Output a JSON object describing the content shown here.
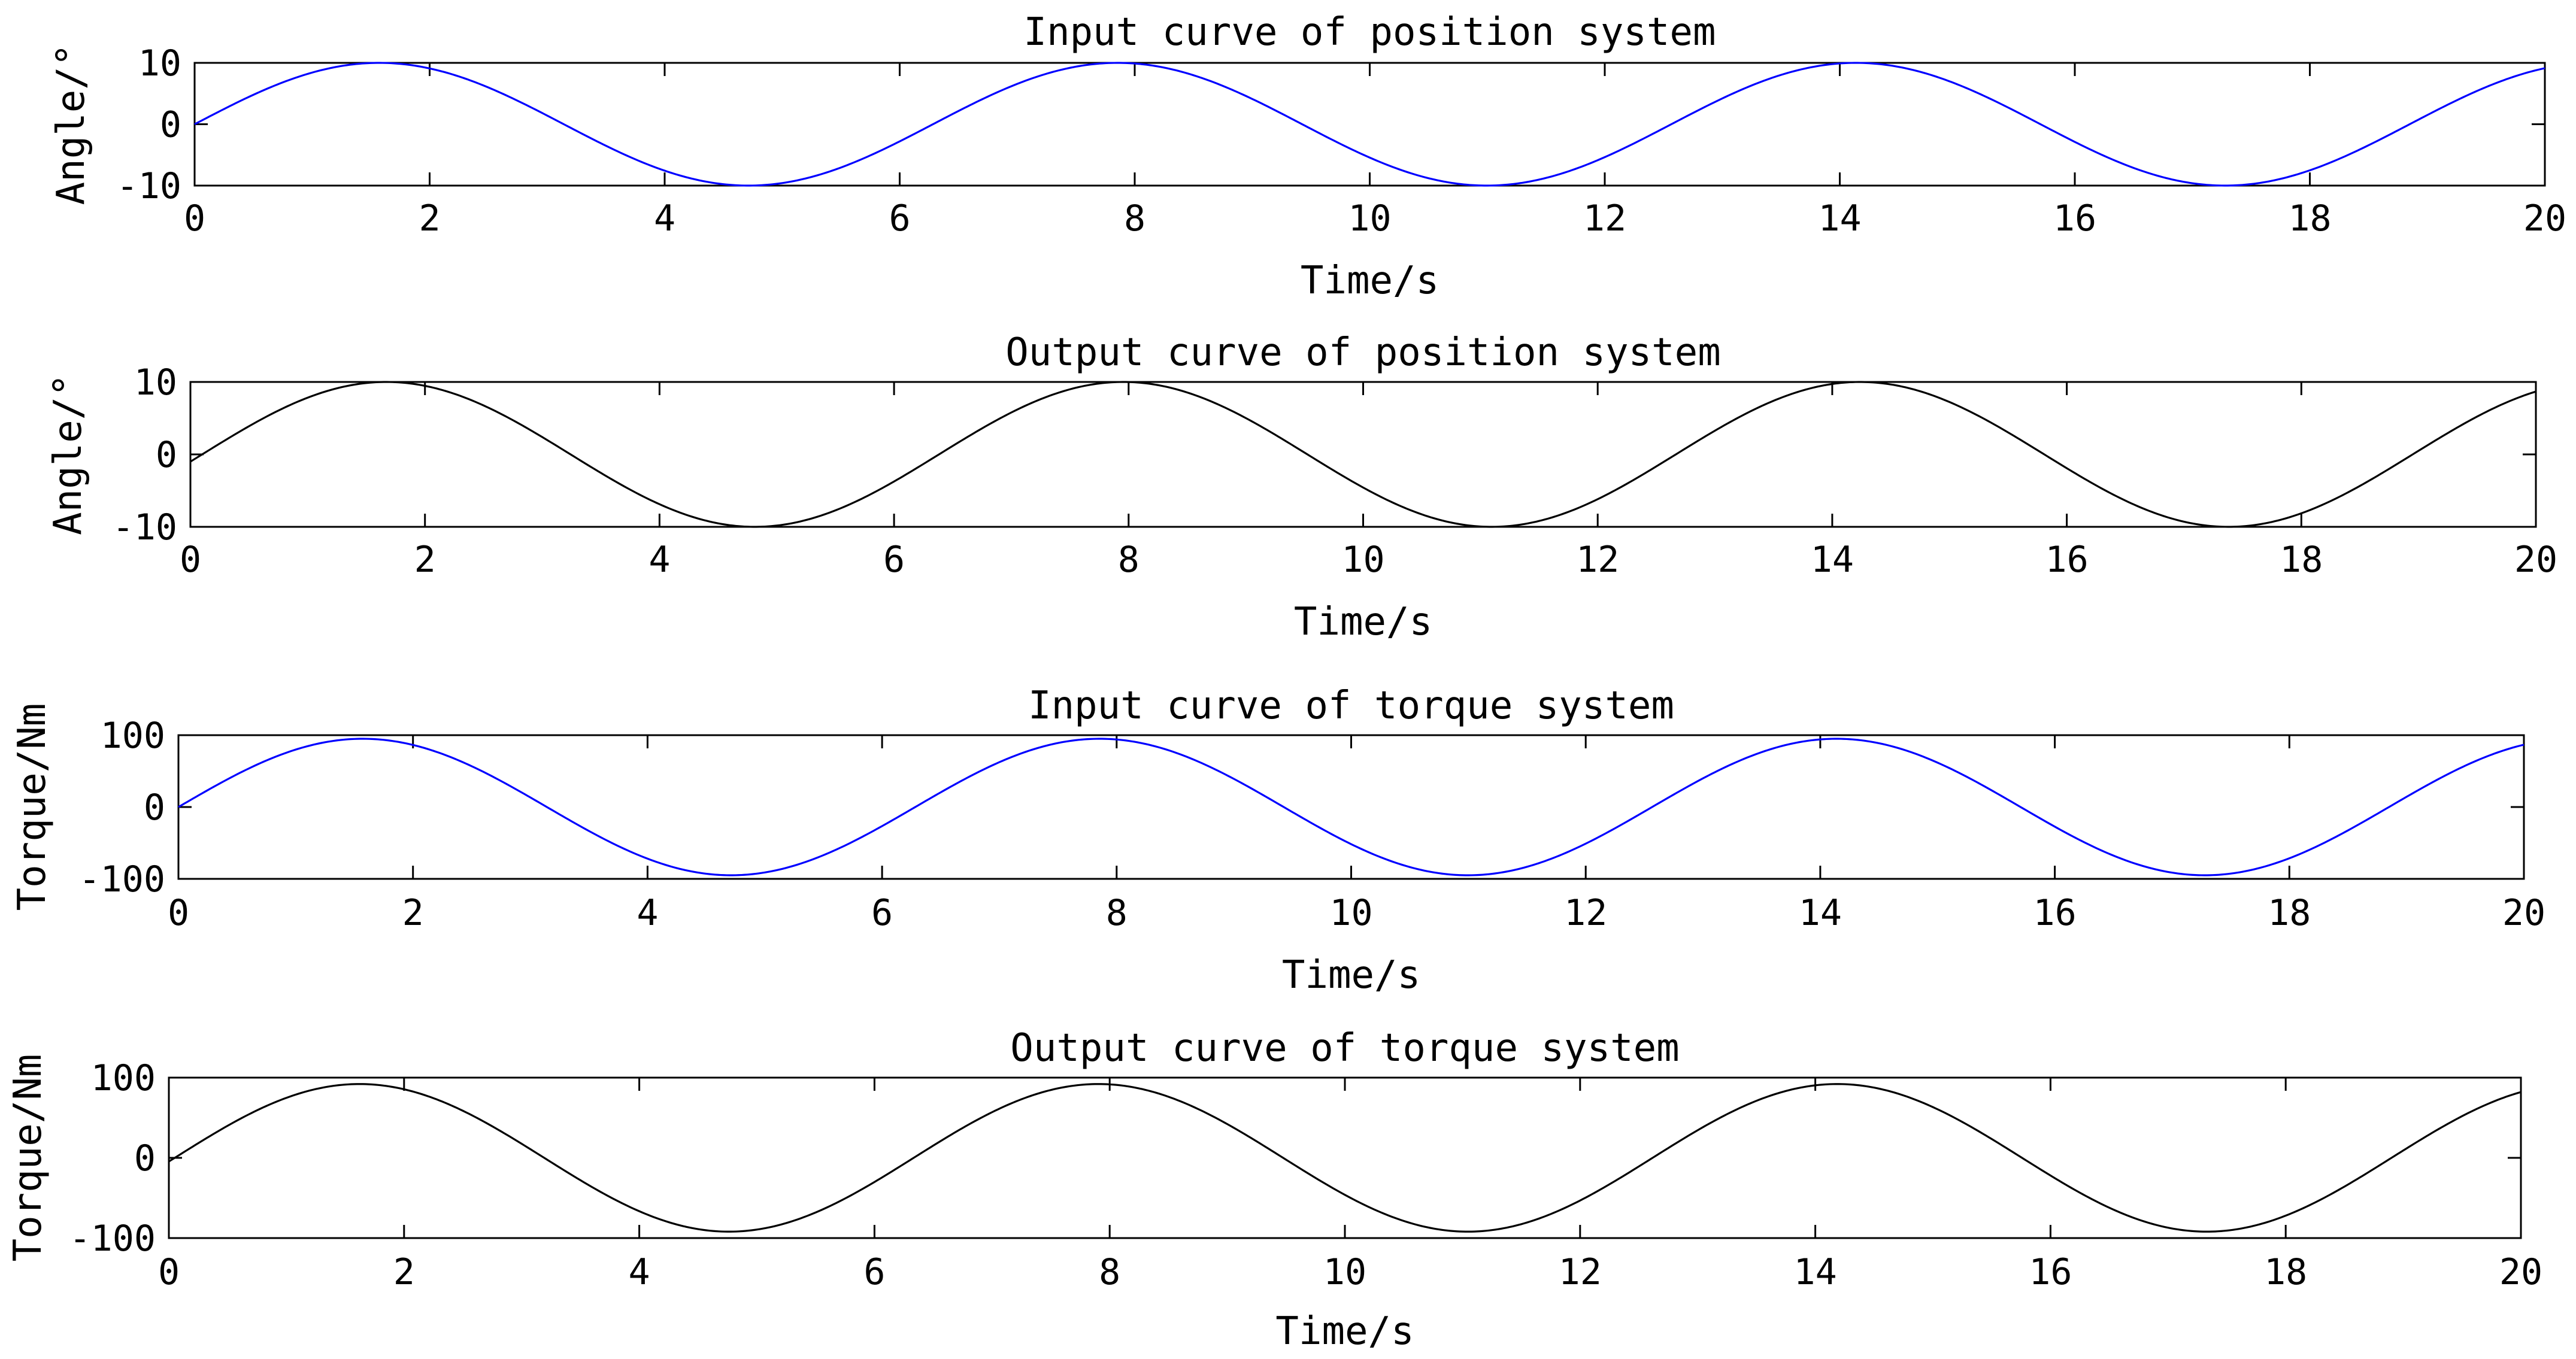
{
  "chart_data": [
    {
      "type": "line",
      "title": "Input curve of position system",
      "xlabel": "Time/s",
      "ylabel": "Angle/°",
      "xlim": [
        0,
        20
      ],
      "ylim": [
        -10,
        10
      ],
      "xticks": [
        0,
        2,
        4,
        6,
        8,
        10,
        12,
        14,
        16,
        18,
        20
      ],
      "yticks": [
        -10,
        0,
        10
      ],
      "xtick_labels": [
        "0",
        "2",
        "4",
        "6",
        "8",
        "10",
        "12",
        "14",
        "16",
        "18",
        "20"
      ],
      "ytick_labels": [
        "-10",
        "0",
        "10"
      ],
      "grid": false,
      "series": [
        {
          "color": "#0000ff",
          "function": "sine",
          "amplitude": 10,
          "phase_shift_s": 0,
          "x": [
            0,
            1,
            1.57,
            2,
            3,
            4,
            4.71,
            5,
            6,
            7,
            7.85,
            8,
            9,
            10,
            11,
            11.0,
            12,
            13,
            14,
            14.14,
            15,
            16,
            17,
            17.28,
            18,
            19,
            20
          ],
          "y": [
            0,
            8.41,
            10,
            9.09,
            1.41,
            -7.57,
            -10,
            -9.59,
            -2.79,
            6.57,
            10,
            9.89,
            4.12,
            -5.44,
            -10,
            -10,
            -5.37,
            4.2,
            9.91,
            10,
            6.5,
            -2.88,
            -9.61,
            -10,
            -7.51,
            1.5,
            9.13
          ]
        }
      ]
    },
    {
      "type": "line",
      "title": "Output curve of position system",
      "xlabel": "Time/s",
      "ylabel": "Angle/°",
      "xlim": [
        0,
        20
      ],
      "ylim": [
        -10,
        10
      ],
      "xticks": [
        0,
        2,
        4,
        6,
        8,
        10,
        12,
        14,
        16,
        18,
        20
      ],
      "yticks": [
        -10,
        0,
        10
      ],
      "xtick_labels": [
        "0",
        "2",
        "4",
        "6",
        "8",
        "10",
        "12",
        "14",
        "16",
        "18",
        "20"
      ],
      "ytick_labels": [
        "-10",
        "0",
        "10"
      ],
      "grid": false,
      "series": [
        {
          "color": "#000000",
          "function": "sine",
          "amplitude": 10,
          "phase_shift_s": 0.1,
          "x": [
            0,
            1,
            1.67,
            2,
            3,
            4,
            4.81,
            5,
            6,
            7,
            7.95,
            8,
            9,
            10,
            11,
            11.1,
            12,
            13,
            14,
            14.24,
            15,
            16,
            17,
            17.38,
            18,
            19,
            20
          ],
          "y": [
            0,
            7.83,
            10,
            9.5,
            2.37,
            -6.89,
            -10,
            -9.9,
            -3.71,
            5.79,
            10,
            10,
            4.96,
            -4.54,
            -9.94,
            -10,
            -6.09,
            3.14,
            9.64,
            10,
            7.14,
            -1.97,
            -9.3,
            -10,
            -7.93,
            0.37,
            8.63
          ]
        }
      ]
    },
    {
      "type": "line",
      "title": "Input curve of torque system",
      "xlabel": "Time/s",
      "ylabel": "Torque/Nm",
      "xlim": [
        0,
        20
      ],
      "ylim": [
        -100,
        100
      ],
      "xticks": [
        0,
        2,
        4,
        6,
        8,
        10,
        12,
        14,
        16,
        18,
        20
      ],
      "yticks": [
        -100,
        0,
        100
      ],
      "xtick_labels": [
        "0",
        "2",
        "4",
        "6",
        "8",
        "10",
        "12",
        "14",
        "16",
        "18",
        "20"
      ],
      "ytick_labels": [
        "-100",
        "0",
        "100"
      ],
      "grid": false,
      "series": [
        {
          "color": "#0000ff",
          "function": "sine",
          "amplitude": 95,
          "phase_shift_s": 0,
          "x": [
            0,
            1,
            1.57,
            2,
            3,
            4,
            4.71,
            5,
            6,
            7,
            7.85,
            8,
            9,
            10,
            11,
            12,
            13,
            14,
            14.14,
            15,
            16,
            17,
            17.28,
            18,
            19,
            20
          ],
          "y": [
            0,
            79.9,
            95,
            86.4,
            13.4,
            -71.9,
            -95,
            -91.1,
            -26.5,
            62.4,
            95,
            94,
            39.2,
            -51.7,
            -95,
            -51,
            39.9,
            94.1,
            95,
            61.8,
            -27.4,
            -91.3,
            -95,
            -71.3,
            14.3,
            86.7
          ]
        }
      ]
    },
    {
      "type": "line",
      "title": "Output curve of torque system",
      "xlabel": "Time/s",
      "ylabel": "Torque/Nm",
      "xlim": [
        0,
        20
      ],
      "ylim": [
        -100,
        100
      ],
      "xticks": [
        0,
        2,
        4,
        6,
        8,
        10,
        12,
        14,
        16,
        18,
        20
      ],
      "yticks": [
        -100,
        0,
        100
      ],
      "xtick_labels": [
        "0",
        "2",
        "4",
        "6",
        "8",
        "10",
        "12",
        "14",
        "16",
        "18",
        "20"
      ],
      "ytick_labels": [
        "-100",
        "0",
        "100"
      ],
      "grid": false,
      "series": [
        {
          "color": "#000000",
          "function": "sine",
          "amplitude": 92,
          "phase_shift_s": 0.05,
          "x": [
            0,
            1,
            1.62,
            2,
            3,
            4,
            4.76,
            5,
            6,
            7,
            7.9,
            8,
            9,
            10,
            11,
            12,
            13,
            14,
            14.19,
            15,
            16,
            17,
            17.33,
            18,
            19,
            20
          ],
          "y": [
            0,
            75.5,
            92,
            84.8,
            15.5,
            -68.4,
            -92,
            -88.9,
            -27.6,
            59.4,
            92,
            91.5,
            37.4,
            -48.7,
            -92,
            -47.7,
            38.1,
            91.6,
            92,
            59.3,
            -27,
            -88.6,
            -92,
            -68.9,
            15.2,
            85.1
          ]
        }
      ]
    }
  ]
}
